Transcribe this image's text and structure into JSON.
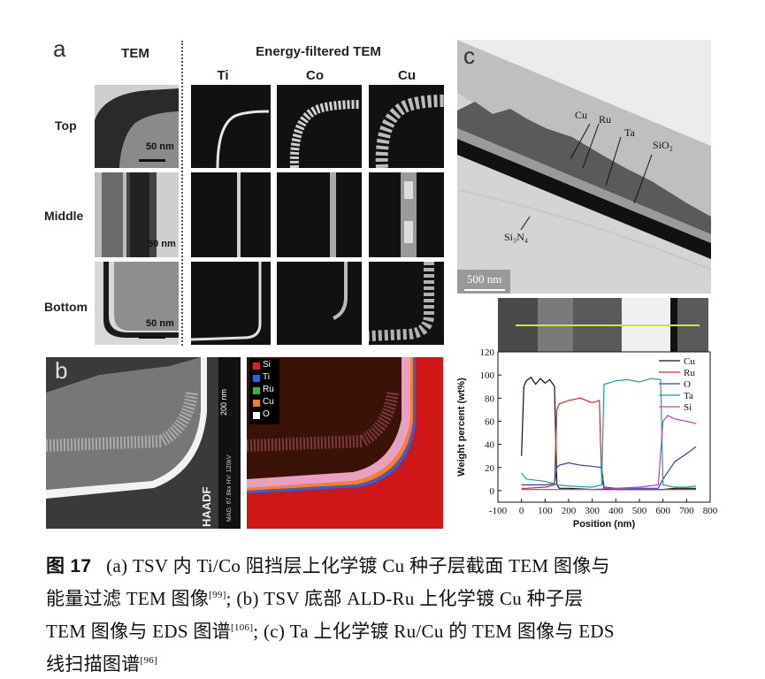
{
  "panel_a": {
    "letter": "a",
    "tem_header": "TEM",
    "eftem_header": "Energy-filtered TEM",
    "element_headers": [
      "Ti",
      "Co",
      "Cu"
    ],
    "row_labels": [
      "Top",
      "Middle",
      "Bottom"
    ],
    "scale_labels": [
      "50 nm",
      "50 nm",
      "50 nm"
    ]
  },
  "panel_b": {
    "letter": "b",
    "scale_label": "200 nm",
    "detector_label": "HAADF",
    "info_text": "MAG: 67.8kx  HV: 120kV",
    "legend": [
      {
        "label": "Si",
        "color": "#e0202a"
      },
      {
        "label": "Ti",
        "color": "#3060e0"
      },
      {
        "label": "Ru",
        "color": "#40b040"
      },
      {
        "label": "Cu",
        "color": "#f08020"
      },
      {
        "label": "O",
        "color": "#ffffff"
      }
    ]
  },
  "panel_c": {
    "letter": "c",
    "layer_labels": [
      "Cu",
      "Ru",
      "Ta",
      "SiO₂",
      "Si₃N₄"
    ],
    "scale_label": "500 nm"
  },
  "chart_data": {
    "type": "line",
    "xlabel": "Position (nm)",
    "ylabel": "Weight percent (wt%)",
    "xlim": [
      -100,
      800
    ],
    "ylim": [
      -10,
      120
    ],
    "x_ticks": [
      -100,
      0,
      100,
      200,
      300,
      400,
      500,
      600,
      700,
      800
    ],
    "y_ticks": [
      0,
      20,
      40,
      60,
      80,
      100,
      120
    ],
    "legend_position": "top-right",
    "series": [
      {
        "name": "Cu",
        "color": "#111111",
        "x": [
          0,
          10,
          20,
          40,
          60,
          80,
          100,
          120,
          140,
          150,
          160,
          200,
          300,
          350,
          400,
          500,
          600,
          650,
          700,
          740
        ],
        "y": [
          30,
          90,
          95,
          98,
          92,
          97,
          93,
          96,
          90,
          5,
          2,
          2,
          1,
          1,
          1,
          1,
          1,
          2,
          2,
          2
        ]
      },
      {
        "name": "Ru",
        "color": "#e0202a",
        "x": [
          0,
          20,
          100,
          140,
          150,
          160,
          200,
          250,
          300,
          330,
          340,
          350,
          400,
          500,
          600,
          650,
          700,
          740
        ],
        "y": [
          2,
          2,
          3,
          5,
          70,
          75,
          78,
          80,
          76,
          78,
          10,
          2,
          1,
          1,
          1,
          1,
          1,
          1
        ]
      },
      {
        "name": "O",
        "color": "#3040c0",
        "x": [
          0,
          20,
          100,
          140,
          150,
          160,
          200,
          250,
          300,
          340,
          350,
          400,
          500,
          580,
          600,
          650,
          700,
          740
        ],
        "y": [
          5,
          5,
          5,
          6,
          20,
          22,
          24,
          22,
          21,
          20,
          3,
          2,
          2,
          2,
          10,
          25,
          32,
          38
        ]
      },
      {
        "name": "Ta",
        "color": "#20a090",
        "x": [
          0,
          20,
          100,
          140,
          150,
          200,
          300,
          340,
          350,
          400,
          450,
          500,
          550,
          590,
          600,
          650,
          700,
          740
        ],
        "y": [
          15,
          10,
          8,
          6,
          5,
          4,
          3,
          5,
          92,
          95,
          96,
          94,
          97,
          96,
          5,
          3,
          3,
          4
        ]
      },
      {
        "name": "Si",
        "color": "#c040c0",
        "x": [
          0,
          100,
          200,
          300,
          400,
          500,
          580,
          600,
          620,
          650,
          700,
          740
        ],
        "y": [
          1,
          1,
          1,
          1,
          2,
          3,
          5,
          60,
          65,
          62,
          60,
          58
        ]
      }
    ]
  },
  "caption": {
    "fig_label": "图 17",
    "line1": "(a) TSV 内 Ti/Co 阻挡层上化学镀 Cu 种子层截面 TEM 图像与",
    "line2_pre": "能量过滤 TEM 图像",
    "ref1": "[99]",
    "line2_post": "; (b) TSV 底部 ALD-Ru 上化学镀 Cu 种子层",
    "line3_pre": "TEM 图像与 EDS 图谱",
    "ref2": "[106]",
    "line3_post": "; (c) Ta 上化学镀 Ru/Cu 的 TEM 图像与 EDS",
    "line4_pre": "线扫描图谱",
    "ref3": "[96]"
  }
}
